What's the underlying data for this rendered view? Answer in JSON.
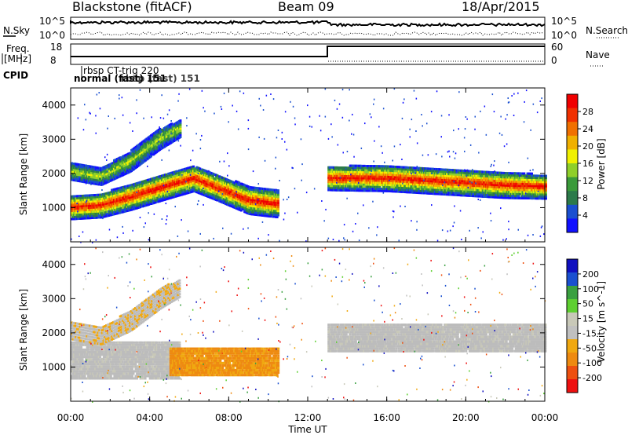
{
  "header": {
    "site": "Blackstone (fitACF)",
    "beam": "Beam 09",
    "date": "18/Apr/2015"
  },
  "top_panel": {
    "left_label_top": "N.Sky",
    "left_label_freq_1": "Freq.",
    "left_label_freq_2": "[MHz]",
    "left_label_cpid": "CPID",
    "right_label_top": "N.Search",
    "right_label_nave": "Nave",
    "noise_ticks": [
      "10^5",
      "10^0"
    ],
    "freq_ticks": [
      "18",
      "8"
    ],
    "nave_ticks": [
      "60",
      "0"
    ],
    "cpid_entries": [
      "rbsp CT-trig 220",
      "normal (fast) 151",
      "rbsp (fast) 151"
    ]
  },
  "colors": {
    "power_scale": [
      "#1010ff",
      "#1a4fd0",
      "#2c7a4a",
      "#3a9a3a",
      "#8fcf2a",
      "#f0f000",
      "#f0b000",
      "#f07000",
      "#f03000",
      "#f00000"
    ],
    "velocity_scale": [
      "#ee1010",
      "#ee5010",
      "#ee8a10",
      "#f0a810",
      "#c0c0c0",
      "#c8c8b8",
      "#5ecf30",
      "#3aa040",
      "#1a50d0",
      "#1010c0"
    ],
    "ground_scatter": "#bcbcbc"
  },
  "chart_data": [
    {
      "type": "heatmap",
      "title": "Power",
      "ylabel": "Slant Range [km]",
      "xlabel": "Time UT",
      "xticks": [
        "00:00",
        "04:00",
        "08:00",
        "12:00",
        "16:00",
        "20:00",
        "00:00"
      ],
      "yticks": [
        "1000",
        "2000",
        "3000",
        "4000"
      ],
      "ylim": [
        0,
        4500
      ],
      "xlim_hours": [
        0,
        24
      ],
      "colorbar": {
        "label": "Power [dB]",
        "ticks": [
          "4",
          "8",
          "12",
          "16",
          "20",
          "24",
          "28"
        ],
        "range": [
          0,
          30
        ]
      },
      "bands": [
        {
          "name": "main",
          "points": [
            [
              0,
              1050,
              350
            ],
            [
              1.5,
              1100,
              350
            ],
            [
              3,
              1350,
              380
            ],
            [
              5,
              1700,
              380
            ],
            [
              6.2,
              1900,
              380
            ],
            [
              7.5,
              1600,
              380
            ],
            [
              9,
              1250,
              400
            ],
            [
              10.5,
              1150,
              400
            ]
          ]
        },
        {
          "name": "upper",
          "points": [
            [
              0,
              2100,
              250
            ],
            [
              1.5,
              1950,
              250
            ],
            [
              3,
              2400,
              300
            ],
            [
              4.5,
              3050,
              300
            ],
            [
              5.5,
              3350,
              250
            ]
          ]
        },
        {
          "name": "evening",
          "points": [
            [
              13,
              1900,
              350
            ],
            [
              16,
              1900,
              380
            ],
            [
              19,
              1800,
              380
            ],
            [
              22,
              1700,
              380
            ],
            [
              24,
              1650,
              350
            ]
          ]
        }
      ]
    },
    {
      "type": "heatmap",
      "title": "Velocity",
      "ylabel": "Slant Range [km]",
      "xlabel": "Time UT",
      "xticks": [
        "00:00",
        "04:00",
        "08:00",
        "12:00",
        "16:00",
        "20:00",
        "00:00"
      ],
      "yticks": [
        "1000",
        "2000",
        "3000",
        "4000"
      ],
      "ylim": [
        0,
        4500
      ],
      "xlim_hours": [
        0,
        24
      ],
      "colorbar": {
        "label": "Velocity [m s^-1]",
        "ticks": [
          "200",
          "100",
          "50",
          "15",
          "-15",
          "-50",
          "-100",
          "-200"
        ],
        "range": [
          -250,
          250
        ]
      },
      "regions": [
        {
          "name": "ground-scatter-evening",
          "t0": 13,
          "t1": 24,
          "r0": 1500,
          "r1": 2300,
          "velocity": 0
        },
        {
          "name": "ground-scatter-morning",
          "t0": 0,
          "t1": 5.5,
          "r0": 700,
          "r1": 1800,
          "velocity": 0
        },
        {
          "name": "westward-flow",
          "t0": 5,
          "t1": 10.5,
          "r0": 800,
          "r1": 1600,
          "velocity": -60
        }
      ]
    }
  ]
}
